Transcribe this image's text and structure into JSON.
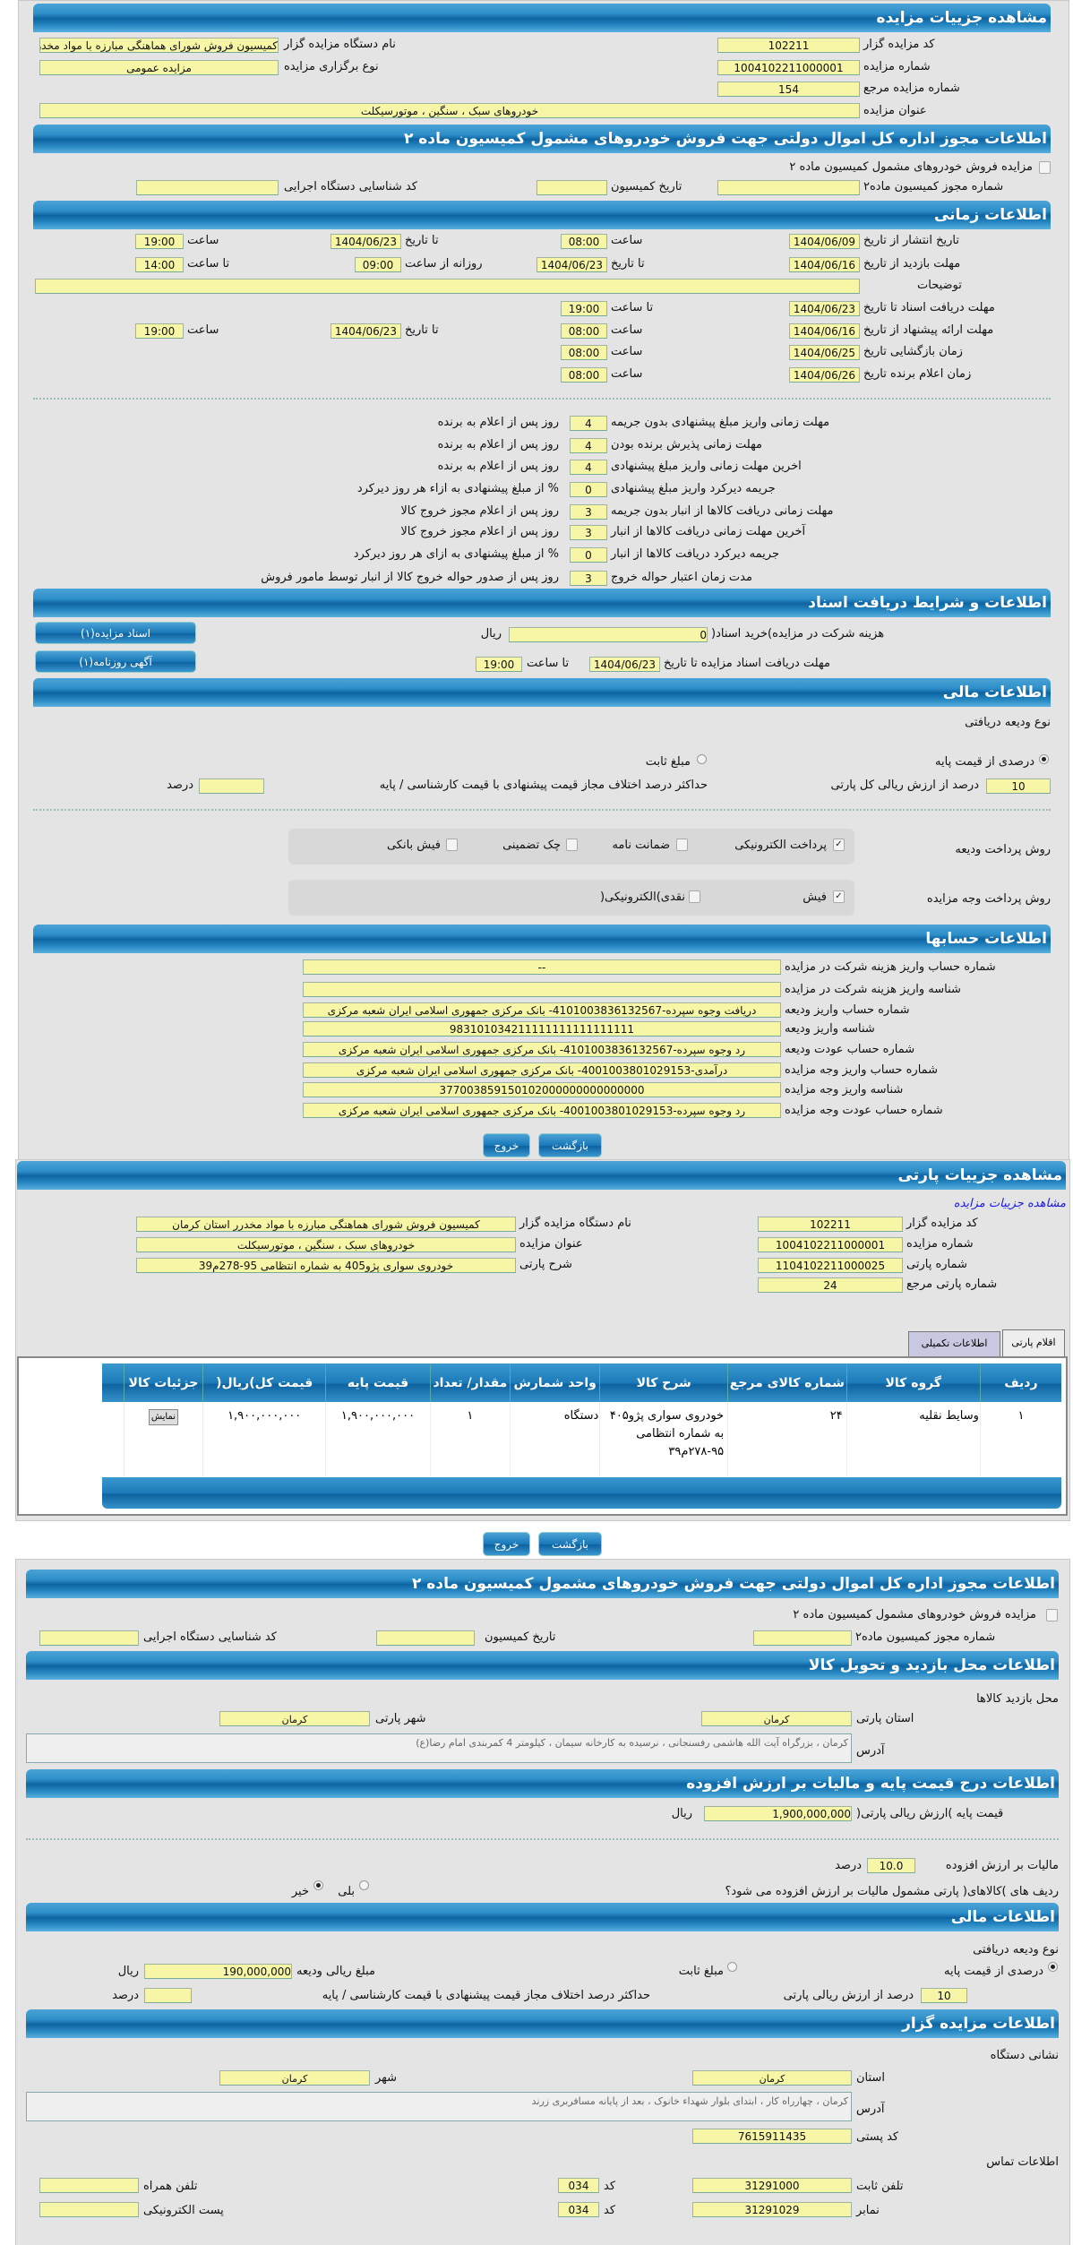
{
  "colors": {
    "header": "#0d64a2",
    "input": "#f6f6a6",
    "panel": "#e4e4e4",
    "link": "#1a1ae0"
  },
  "auction": {
    "title": "مشاهده جزییات مزایده",
    "code_label": "کد مزایده گزار",
    "code": "102211",
    "org_label": "نام دستگاه مزایده گزار",
    "org": "کمیسیون فروش شورای هماهنگی مبارزه با مواد مخدرر استان کرمان",
    "number_label": "شماره مزایده",
    "number": "1004102211000001",
    "type_label": "نوع برگزاری مزایده",
    "type": "مزایده عمومی",
    "ref_label": "شماره مزایده مرجع",
    "ref": "154",
    "subject_label": "عنوان مزایده",
    "subject": "خودروهای سبک ، سنگین ، موتورسیکلت"
  },
  "permit": {
    "title": "اطلاعات مجوز اداره کل اموال دولتی جهت فروش خودروهای مشمول کمیسیون ماده ۲",
    "checkbox_label": "مزایده فروش خودروهای مشمول کمیسیون ماده ۲",
    "permit_no_label": "شماره مجوز کمیسیون ماده۲",
    "permit_no": "",
    "date_label": "تاریخ کمیسیون",
    "date": "",
    "org_id_label": "کد شناسایی دستگاه اجرایی",
    "org_id": ""
  },
  "timing": {
    "title": "اطلاعات زمانی",
    "publish_label": "تاریخ انتشار   از تاریخ",
    "publish_from": "1404/06/09",
    "hour_label": "ساعت",
    "publish_from_time": "08:00",
    "to_date_label": "تا تاریخ",
    "publish_to": "1404/06/23",
    "publish_to_time": "19:00",
    "visit_label": "مهلت بازدید   از تاریخ",
    "visit_from": "1404/06/16",
    "visit_to": "1404/06/23",
    "daily_from_label": "روزانه از ساعت",
    "visit_daily_from": "09:00",
    "to_hour_label": "تا ساعت",
    "visit_daily_to": "14:00",
    "notes_label": "توضیحات",
    "notes": "",
    "docs_label": "مهلت دریافت اسناد   تا تاریخ",
    "docs_to": "1404/06/23",
    "docs_to_time": "19:00",
    "offer_label": "مهلت ارائه پیشنهاد   از تاریخ",
    "offer_from": "1404/06/16",
    "offer_from_time": "08:00",
    "offer_to": "1404/06/23",
    "offer_to_time": "19:00",
    "opening_label": "زمان بازگشایی     تاریخ",
    "opening_date": "1404/06/25",
    "opening_time": "08:00",
    "winner_label": "زمان اعلام برنده    تاریخ",
    "winner_date": "1404/06/26",
    "winner_time": "08:00"
  },
  "penalties": [
    {
      "label": "مهلت زمانی واریز مبلغ پیشنهادی بدون جریمه",
      "value": "4",
      "suffix": "روز پس از اعلام به برنده"
    },
    {
      "label": "مهلت زمانی پذیرش برنده بودن",
      "value": "4",
      "suffix": "روز پس از اعلام به برنده"
    },
    {
      "label": "اخرین مهلت زمانی واریز مبلغ پیشنهادی",
      "value": "4",
      "suffix": "روز پس از اعلام به برنده"
    },
    {
      "label": "جریمه دیرکرد واریز مبلغ پیشنهادی",
      "value": "0",
      "suffix": "% از مبلغ پیشنهادی به ازاء هر روز دیرکرد"
    },
    {
      "label": "مهلت زمانی دریافت کالاها از انبار بدون جریمه",
      "value": "3",
      "suffix": "روز پس از اعلام مجوز خروج کالا"
    },
    {
      "label": "آخرین مهلت زمانی دریافت کالاها از انبار",
      "value": "3",
      "suffix": "روز پس از اعلام مجوز خروج کالا"
    },
    {
      "label": "جریمه دیرکرد دریافت کالاها از انبار",
      "value": "0",
      "suffix": "% از مبلغ پیشنهادی به ازای هر روز دیرکرد"
    },
    {
      "label": "مدت زمان اعتبار حواله خروج",
      "value": "3",
      "suffix": "روز پس از صدور حواله خروج کالا از انبار توسط مامور فروش"
    }
  ],
  "docs": {
    "title": "اطلاعات و شرایط دریافت اسناد",
    "fee_label": "هزینه شرکت در مزایده)خرید اسناد(",
    "fee": "0",
    "rial": "ریال",
    "deadline_label": "مهلت دریافت اسناد مزایده تا تاریخ",
    "deadline_date": "1404/06/23",
    "to_hour_label": "تا ساعت",
    "deadline_time": "19:00",
    "docs_button": "اسناد مزایده(۱)",
    "ad_button": "آگهی روزنامه(۱)"
  },
  "finance": {
    "title": "اطلاعات مالی",
    "deposit_type_label": "نوع ودیعه دریافتی",
    "percent_option": "درصدی از قیمت پایه",
    "fixed_option": "مبلغ ثابت",
    "selected": "percent",
    "percent": "10",
    "percent_label": "درصد از ارزش ریالی کل پارتی",
    "max_diff_label": "حداکثر درصد اختلاف مجاز قیمت پیشنهادی با قیمت کارشناسی / پایه",
    "max_diff": "",
    "percent_unit": "درصد"
  },
  "payment": {
    "deposit_method_label": "روش پرداخت ودیعه",
    "deposit_methods": [
      {
        "label": "پرداخت الکترونیکی",
        "checked": true
      },
      {
        "label": "ضمانت نامه",
        "checked": false
      },
      {
        "label": "چک تضمینی",
        "checked": false
      },
      {
        "label": "فیش بانکی",
        "checked": false
      }
    ],
    "auction_method_label": "روش پرداخت وجه مزایده",
    "auction_methods": [
      {
        "label": "فیش",
        "checked": true
      },
      {
        "label": "نقدی)الکترونیکی(",
        "checked": false
      }
    ]
  },
  "accounts": {
    "title": "اطلاعات حسابها",
    "rows": [
      {
        "label": "شماره حساب واریز هزینه شرکت در مزایده",
        "value": "--"
      },
      {
        "label": "شناسه واریز هزینه شرکت در مزایده",
        "value": ""
      },
      {
        "label": "شماره حساب واریز ودیعه",
        "value": "دریافت وجوه سپرده-4101003836132567- بانک مرکزی جمهوری اسلامی ایران شعبه مرکزی"
      },
      {
        "label": "شناسه واریز ودیعه",
        "value": "983101034211111111111111111"
      },
      {
        "label": "شماره حساب عودت ودیعه",
        "value": "رد وجوه سپرده-4101003836132567- بانک مرکزی جمهوری اسلامی ایران شعبه مرکزی"
      },
      {
        "label": "شماره حساب واریز وجه مزایده",
        "value": "درآمدی-4001003801029153- بانک مرکزی جمهوری اسلامی ایران شعبه مرکزی"
      },
      {
        "label": "شناسه واریز وجه مزایده",
        "value": "377003859150102000000000000000"
      },
      {
        "label": "شماره حساب عودت وجه مزایده",
        "value": "رد وجوه سپرده-4001003801029153- بانک مرکزی جمهوری اسلامی ایران شعبه مرکزی"
      }
    ]
  },
  "buttons": {
    "back": "بازگشت",
    "exit": "خروج"
  },
  "party": {
    "title": "مشاهده جزییات پارتی",
    "auction_link": "مشاهده جزییات مزایده",
    "code_label": "کد مزایده گزار",
    "code": "102211",
    "org_label": "نام دستگاه مزایده گزار",
    "org": "کمیسیون فروش شورای هماهنگی مبارزه با مواد مخدرر استان کرمان",
    "number_label": "شماره مزایده",
    "number": "1004102211000001",
    "subject_label": "عنوان مزایده",
    "subject": "خودروهای سبک ، سنگین ، موتورسیکلت",
    "party_no_label": "شماره پارتی",
    "party_no": "1104102211000025",
    "desc_label": "شرح پارتی",
    "desc": "خودروی سواری پژو405 به شماره انتظامی 95-278م39",
    "ref_label": "شماره پارتی مرجع",
    "ref": "24",
    "tabs": [
      {
        "label": "اقلام پارتی",
        "active": true
      },
      {
        "label": "اطلاعات تکمیلی",
        "active": false
      }
    ]
  },
  "table": {
    "headers": [
      "ردیف",
      "گروه کالا",
      "شماره کالای مرجع",
      "شرح کالا",
      "واحد شمارش",
      "مقدار/ تعداد",
      "قیمت پایه",
      "قیمت کل)ریال(",
      "جزئیات کالا"
    ],
    "rows": [
      [
        "۱",
        "وسایط نقلیه",
        "۲۴",
        "خودروی سواری پژو۴۰۵ به شماره انتظامی ۹۵-۲۷۸م۳۹",
        "دستگاه",
        "۱",
        "۱,۹۰۰,۰۰۰,۰۰۰",
        "۱,۹۰۰,۰۰۰,۰۰۰",
        "نمایش"
      ]
    ]
  },
  "party_permit": {
    "title": "اطلاعات مجوز اداره کل اموال دولتی جهت فروش خودروهای مشمول کمیسیون ماده ۲",
    "checkbox_label": "مزایده فروش خودروهای مشمول کمیسیون ماده ۲",
    "permit_no_label": "شماره مجوز کمیسیون ماده۲",
    "date_label": "تاریخ کمیسیون",
    "org_id_label": "کد شناسایی دستگاه اجرایی"
  },
  "visit": {
    "title": "اطلاعات محل بازدید و تحویل کالا",
    "place_label": "محل بازدید کالاها",
    "province_label": "استان پارتی",
    "province": "کرمان",
    "city_label": "شهر پارتی",
    "city": "کرمان",
    "address_label": "آدرس",
    "address": "کرمان ، بزرگراه آیت الله هاشمی رفسنجانی ، نرسیده به کارخانه سیمان ، کیلومتر 4 کمربندی امام رضا(ع)"
  },
  "vat": {
    "title": "اطلاعات درج قیمت پایه و مالیات بر ارزش افزوده",
    "base_label": "قیمت پایه )ارزش ریالی پارتی(",
    "base": "1,900,000,000",
    "rial": "ریال",
    "vat_label": "مالیات بر ارزش افزوده",
    "vat": "10.0",
    "percent_unit": "درصد",
    "question": "ردیف های )کالاهای( پارتی مشمول مالیات بر ارزش افزوده می شود؟",
    "yes": "بلی",
    "no": "خیر",
    "selected": "no"
  },
  "party_finance": {
    "title": "اطلاعات مالی",
    "deposit_type_label": "نوع ودیعه دریافتی",
    "percent_option": "درصدی از قیمت پایه",
    "fixed_option": "مبلغ ثابت",
    "selected": "percent",
    "amount_label": "مبلغ ریالی ودیعه",
    "amount": "190,000,000",
    "rial": "ریال",
    "percent": "10",
    "percent_label": "درصد از ارزش ریالی پارتی",
    "max_diff_label": "حداکثر درصد اختلاف مجاز قیمت پیشنهادی با قیمت کارشناسی / پایه",
    "max_diff": "",
    "percent_unit": "درصد"
  },
  "auctioneer": {
    "title": "اطلاعات مزایده گزار",
    "address_title": "نشانی دستگاه",
    "province_label": "استان",
    "province": "کرمان",
    "city_label": "شهر",
    "city": "کرمان",
    "address_label": "آدرس",
    "address": "کرمان ، چهارراه کار ، ابتدای بلوار شهداء خانوک ، بعد از پایانه مسافربری زرند",
    "postal_label": "کد پستی",
    "postal": "7615911435",
    "contact_title": "اطلاعات تماس",
    "phone_label": "تلفن ثابت",
    "phone": "31291000",
    "code_label": "کد",
    "phone_code": "034",
    "mobile_label": "تلفن همراه",
    "mobile": "",
    "fax_label": "نمابر",
    "fax": "31291029",
    "fax_code": "034",
    "email_label": "پست الکترونیکی",
    "email": ""
  }
}
